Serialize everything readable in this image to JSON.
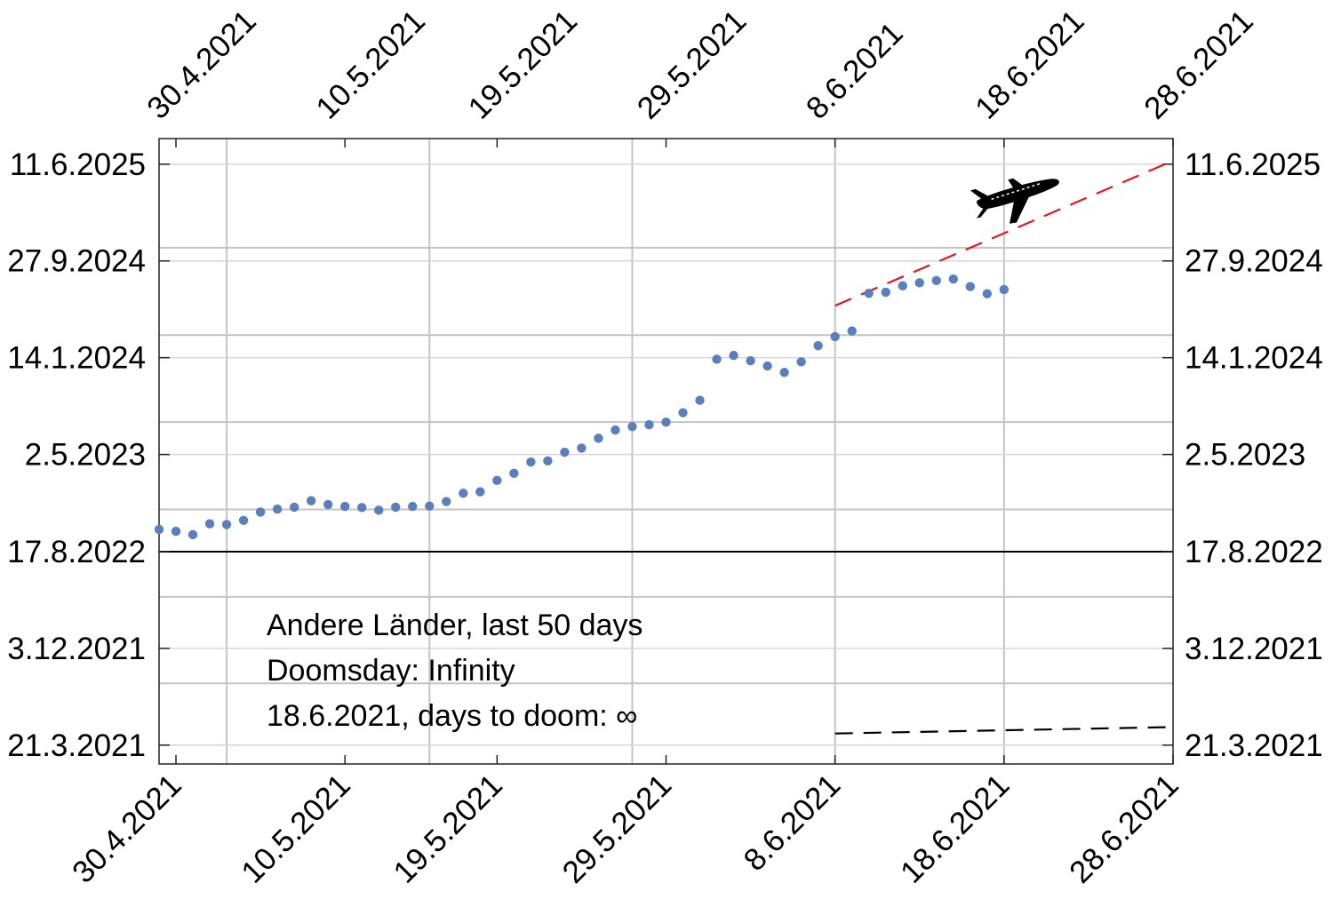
{
  "chart_data": {
    "type": "scatter",
    "x_axis": {
      "kind": "date",
      "range": [
        "2021-04-29",
        "2021-06-28"
      ],
      "tick_dates": [
        "2021-04-30",
        "2021-05-10",
        "2021-05-19",
        "2021-05-29",
        "2021-06-08",
        "2021-06-18",
        "2021-06-28"
      ],
      "tick_labels": [
        "30.4.2021",
        "10.5.2021",
        "19.5.2021",
        "29.5.2021",
        "8.6.2021",
        "18.6.2021",
        "28.6.2021"
      ],
      "gridlines_at": [
        "2021-05-03",
        "2021-05-15",
        "2021-05-27",
        "2021-06-08",
        "2021-06-18"
      ]
    },
    "y_axis": {
      "kind": "date",
      "range": [
        "2021-01-30",
        "2025-08-18"
      ],
      "tick_dates": [
        "2021-03-21",
        "2021-12-03",
        "2022-08-17",
        "2023-05-02",
        "2024-01-14",
        "2024-09-27",
        "2025-06-11"
      ],
      "tick_labels": [
        "21.3.2021",
        "3.12.2021",
        "17.8.2022",
        "2.5.2023",
        "14.1.2024",
        "27.9.2024",
        "11.6.2025"
      ],
      "gridlines_at": [
        "2021-09-01",
        "2022-04-19",
        "2022-12-07",
        "2023-07-27",
        "2024-03-14",
        "2024-11-01"
      ],
      "reference_line": "2022-08-17"
    },
    "grid": true,
    "series": [
      {
        "points": [
          [
            "2021-04-29",
            "2022-10-15"
          ],
          [
            "2021-04-30",
            "2022-10-10"
          ],
          [
            "2021-05-01",
            "2022-10-01"
          ],
          [
            "2021-05-02",
            "2022-10-30"
          ],
          [
            "2021-05-03",
            "2022-10-28"
          ],
          [
            "2021-05-04",
            "2022-11-08"
          ],
          [
            "2021-05-05",
            "2022-11-30"
          ],
          [
            "2021-05-06",
            "2022-12-08"
          ],
          [
            "2021-05-07",
            "2022-12-13"
          ],
          [
            "2021-05-08",
            "2022-12-30"
          ],
          [
            "2021-05-09",
            "2022-12-20"
          ],
          [
            "2021-05-10",
            "2022-12-15"
          ],
          [
            "2021-05-11",
            "2022-12-12"
          ],
          [
            "2021-05-12",
            "2022-12-05"
          ],
          [
            "2021-05-13",
            "2022-12-13"
          ],
          [
            "2021-05-14",
            "2022-12-15"
          ],
          [
            "2021-05-15",
            "2022-12-16"
          ],
          [
            "2021-05-16",
            "2022-12-28"
          ],
          [
            "2021-05-17",
            "2023-01-19"
          ],
          [
            "2021-05-18",
            "2023-01-23"
          ],
          [
            "2021-05-19",
            "2023-02-22"
          ],
          [
            "2021-05-20",
            "2023-03-13"
          ],
          [
            "2021-05-21",
            "2023-04-12"
          ],
          [
            "2021-05-22",
            "2023-04-15"
          ],
          [
            "2021-05-23",
            "2023-05-08"
          ],
          [
            "2021-05-24",
            "2023-05-19"
          ],
          [
            "2021-05-25",
            "2023-06-14"
          ],
          [
            "2021-05-26",
            "2023-07-06"
          ],
          [
            "2021-05-27",
            "2023-07-15"
          ],
          [
            "2021-05-28",
            "2023-07-20"
          ],
          [
            "2021-05-29",
            "2023-07-27"
          ],
          [
            "2021-05-30",
            "2023-08-21"
          ],
          [
            "2021-05-31",
            "2023-09-23"
          ],
          [
            "2021-06-01",
            "2024-01-10"
          ],
          [
            "2021-06-02",
            "2024-01-20"
          ],
          [
            "2021-06-03",
            "2024-01-06"
          ],
          [
            "2021-06-04",
            "2023-12-23"
          ],
          [
            "2021-06-05",
            "2023-12-06"
          ],
          [
            "2021-06-06",
            "2024-01-03"
          ],
          [
            "2021-06-07",
            "2024-02-15"
          ],
          [
            "2021-06-08",
            "2024-03-10"
          ],
          [
            "2021-06-09",
            "2024-03-25"
          ],
          [
            "2021-06-10",
            "2024-07-03"
          ],
          [
            "2021-06-11",
            "2024-07-06"
          ],
          [
            "2021-06-12",
            "2024-07-23"
          ],
          [
            "2021-06-13",
            "2024-07-31"
          ],
          [
            "2021-06-14",
            "2024-08-06"
          ],
          [
            "2021-06-15",
            "2024-08-10"
          ],
          [
            "2021-06-16",
            "2024-07-21"
          ],
          [
            "2021-06-17",
            "2024-07-02"
          ],
          [
            "2021-06-18",
            "2024-07-13"
          ]
        ]
      }
    ],
    "trend_line": {
      "color": "#e8141c",
      "style": "dashed",
      "from": [
        "2021-06-08",
        "2024-05-31"
      ],
      "to": [
        "2021-06-28",
        "2025-06-20"
      ]
    },
    "lower_line": {
      "color": "#000000",
      "style": "dashed",
      "from": [
        "2021-06-08",
        "2021-04-21"
      ],
      "to": [
        "2021-06-28",
        "2021-05-08"
      ]
    },
    "marker_color": "#5b7fba",
    "annotations": [
      "Andere Länder, last 50 days",
      "Doomsday: Infinity",
      "18.6.2021, days to doom: ∞"
    ],
    "icons": [
      "airplane-icon"
    ]
  }
}
